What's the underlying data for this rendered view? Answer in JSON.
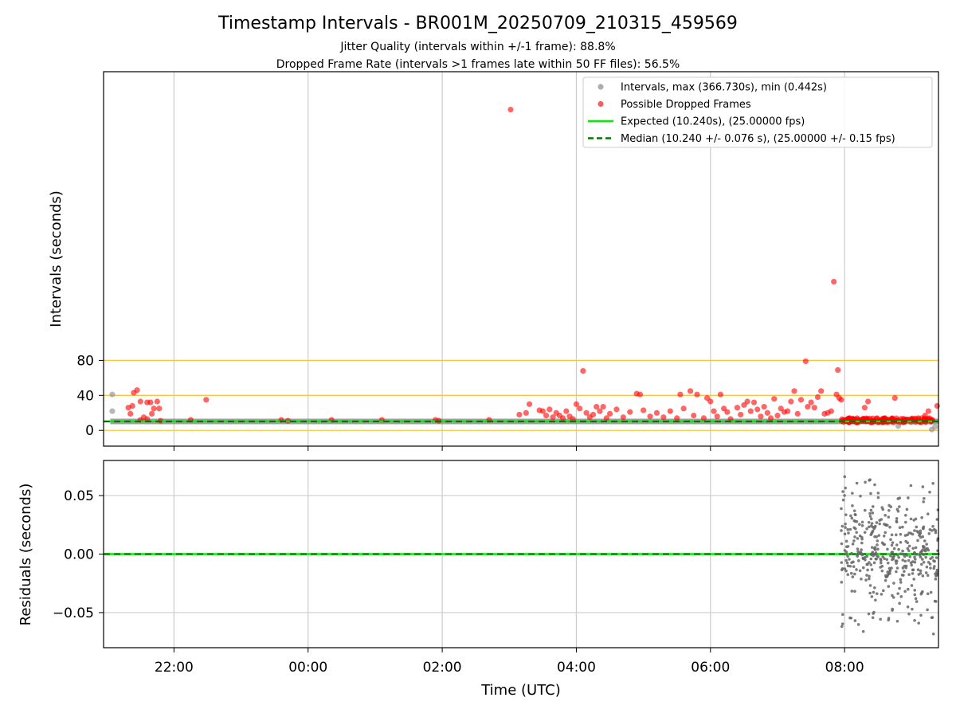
{
  "title": "Timestamp Intervals - BR001M_20250709_210315_459569",
  "subtitle_lines": [
    "Jitter Quality (intervals within +/-1 frame): 88.8%",
    "Dropped Frame Rate (intervals >1 frames late within 50 FF files): 56.5%"
  ],
  "chart_data": [
    {
      "type": "scatter",
      "panel": "top",
      "ylabel": "Intervals (seconds)",
      "xlabel": "",
      "yticks": [
        "80",
        "40",
        "0"
      ],
      "ytick_values": [
        80,
        40,
        0
      ],
      "ylim": [
        -18,
        410
      ],
      "x_unit": "hours from 00:00 UTC (negative = previous day)",
      "xlim": [
        -3.05,
        9.4
      ],
      "xticks": [
        "22:00",
        "00:00",
        "02:00",
        "04:00",
        "06:00",
        "08:00"
      ],
      "xtick_values": [
        -2,
        0,
        2,
        4,
        6,
        8
      ],
      "reference_lines": {
        "values": [
          0,
          40,
          80
        ],
        "color": "#f5c542"
      },
      "legend": {
        "position": "top-right",
        "entries": [
          {
            "label": "Intervals, max (366.730s), min (0.442s)",
            "marker": "dot",
            "color": "#999999"
          },
          {
            "label": "Possible Dropped Frames",
            "marker": "dot",
            "color": "#ff3333"
          },
          {
            "label": "Expected (10.240s), (25.00000 fps)",
            "marker": "line",
            "color": "#00ee00"
          },
          {
            "label": "Median (10.240 +/- 0.076 s), (25.00000 +/- 0.15 fps)",
            "marker": "dashed",
            "color": "#007700"
          }
        ]
      },
      "series": [
        {
          "name": "Intervals, max (366.730s), min (0.442s)",
          "color": "#888888",
          "baseline_y": 10.24,
          "baseline_x_range": [
            -2.95,
            9.4
          ],
          "points": [
            [
              -2.92,
              41
            ],
            [
              -2.92,
              22
            ],
            [
              8.8,
              5
            ],
            [
              9.3,
              1
            ],
            [
              9.35,
              4
            ]
          ]
        },
        {
          "name": "Possible Dropped Frames",
          "color": "#ff2222",
          "points": [
            [
              3.02,
              366.7
            ],
            [
              7.84,
              170
            ],
            [
              7.42,
              79
            ],
            [
              7.9,
              69
            ],
            [
              4.1,
              68
            ],
            [
              -2.55,
              46
            ],
            [
              -2.6,
              43
            ],
            [
              -2.5,
              33
            ],
            [
              -2.68,
              26
            ],
            [
              -2.62,
              28
            ],
            [
              -2.4,
              32
            ],
            [
              -2.35,
              32
            ],
            [
              -2.25,
              33
            ],
            [
              -2.3,
              25
            ],
            [
              -2.22,
              25
            ],
            [
              -2.65,
              19
            ],
            [
              -2.45,
              15
            ],
            [
              -2.33,
              19
            ],
            [
              -2.4,
              13
            ],
            [
              -2.2,
              11
            ],
            [
              -2.5,
              12
            ],
            [
              -1.52,
              35
            ],
            [
              -1.75,
              12
            ],
            [
              -0.4,
              12
            ],
            [
              -0.3,
              11
            ],
            [
              0.35,
              12
            ],
            [
              1.1,
              12
            ],
            [
              1.9,
              12
            ],
            [
              1.95,
              11
            ],
            [
              2.7,
              12
            ],
            [
              3.15,
              18
            ],
            [
              3.25,
              20
            ],
            [
              3.3,
              30
            ],
            [
              3.45,
              23
            ],
            [
              3.5,
              22
            ],
            [
              3.55,
              17
            ],
            [
              3.6,
              24
            ],
            [
              3.65,
              15
            ],
            [
              3.7,
              20
            ],
            [
              3.75,
              17
            ],
            [
              3.8,
              14
            ],
            [
              3.85,
              22
            ],
            [
              3.9,
              16
            ],
            [
              3.95,
              13
            ],
            [
              4.0,
              30
            ],
            [
              4.05,
              25
            ],
            [
              4.15,
              20
            ],
            [
              4.2,
              15
            ],
            [
              4.25,
              18
            ],
            [
              4.3,
              27
            ],
            [
              4.35,
              22
            ],
            [
              4.4,
              27
            ],
            [
              4.45,
              14
            ],
            [
              4.5,
              19
            ],
            [
              4.6,
              24
            ],
            [
              4.7,
              15
            ],
            [
              4.8,
              21
            ],
            [
              4.9,
              42
            ],
            [
              4.95,
              41
            ],
            [
              5.0,
              23
            ],
            [
              5.1,
              16
            ],
            [
              5.2,
              20
            ],
            [
              5.3,
              15
            ],
            [
              5.4,
              22
            ],
            [
              5.5,
              14
            ],
            [
              5.55,
              41
            ],
            [
              5.6,
              25
            ],
            [
              5.7,
              45
            ],
            [
              5.75,
              17
            ],
            [
              5.8,
              41
            ],
            [
              5.9,
              14
            ],
            [
              5.95,
              37
            ],
            [
              6.0,
              33
            ],
            [
              6.05,
              22
            ],
            [
              6.1,
              16
            ],
            [
              6.15,
              41
            ],
            [
              6.2,
              25
            ],
            [
              6.25,
              21
            ],
            [
              6.3,
              13
            ],
            [
              6.4,
              26
            ],
            [
              6.45,
              18
            ],
            [
              6.5,
              29
            ],
            [
              6.55,
              33
            ],
            [
              6.6,
              22
            ],
            [
              6.65,
              32
            ],
            [
              6.7,
              24
            ],
            [
              6.75,
              16
            ],
            [
              6.8,
              27
            ],
            [
              6.85,
              20
            ],
            [
              6.9,
              14
            ],
            [
              6.95,
              36
            ],
            [
              7.0,
              17
            ],
            [
              7.05,
              25
            ],
            [
              7.1,
              21
            ],
            [
              7.15,
              22
            ],
            [
              7.2,
              33
            ],
            [
              7.25,
              45
            ],
            [
              7.3,
              19
            ],
            [
              7.35,
              35
            ],
            [
              7.45,
              27
            ],
            [
              7.5,
              32
            ],
            [
              7.55,
              26
            ],
            [
              7.6,
              38
            ],
            [
              7.65,
              45
            ],
            [
              7.7,
              19
            ],
            [
              7.75,
              20
            ],
            [
              7.8,
              22
            ],
            [
              7.88,
              41
            ],
            [
              7.92,
              37
            ],
            [
              7.95,
              35
            ],
            [
              8.3,
              26
            ],
            [
              8.35,
              33
            ],
            [
              8.6,
              12
            ],
            [
              8.75,
              37
            ],
            [
              9.1,
              14
            ],
            [
              9.2,
              17
            ],
            [
              9.25,
              22
            ],
            [
              9.38,
              28
            ]
          ],
          "cluster": {
            "x_range": [
              7.95,
              9.35
            ],
            "y_range": [
              9,
              14
            ],
            "description": "dense run of marginally late intervals near 10.2-13 s"
          }
        },
        {
          "name": "Expected (10.240s), (25.00000 fps)",
          "type": "hline",
          "y": 10.24,
          "color": "#00ee00"
        },
        {
          "name": "Median (10.240 +/- 0.076 s), (25.00000 +/- 0.15 fps)",
          "type": "hline",
          "y": 10.24,
          "color": "#007700",
          "style": "dashed"
        }
      ]
    },
    {
      "type": "scatter",
      "panel": "bottom",
      "ylabel": "Residuals (seconds)",
      "xlabel": "Time (UTC)",
      "yticks": [
        "0.05",
        "0.00",
        "−0.05"
      ],
      "ytick_values": [
        0.05,
        0.0,
        -0.05
      ],
      "ylim": [
        -0.08,
        0.08
      ],
      "xlim": [
        -3.05,
        9.4
      ],
      "xticks": [
        "22:00",
        "00:00",
        "02:00",
        "04:00",
        "06:00",
        "08:00"
      ],
      "xtick_values": [
        -2,
        0,
        2,
        4,
        6,
        8
      ],
      "grid": true,
      "series": [
        {
          "name": "",
          "type": "hline",
          "y": 0.0,
          "color": "#00ee00"
        },
        {
          "name": "",
          "type": "hline",
          "y": 0.0,
          "color": "#007700",
          "style": "dashed"
        },
        {
          "name": "",
          "color": "#666666",
          "scatter_cluster": {
            "x_range": [
              7.95,
              9.4
            ],
            "y_range": [
              -0.08,
              0.08
            ],
            "count": 420,
            "description": "noisy residual scatter after 08:00"
          }
        }
      ]
    }
  ]
}
